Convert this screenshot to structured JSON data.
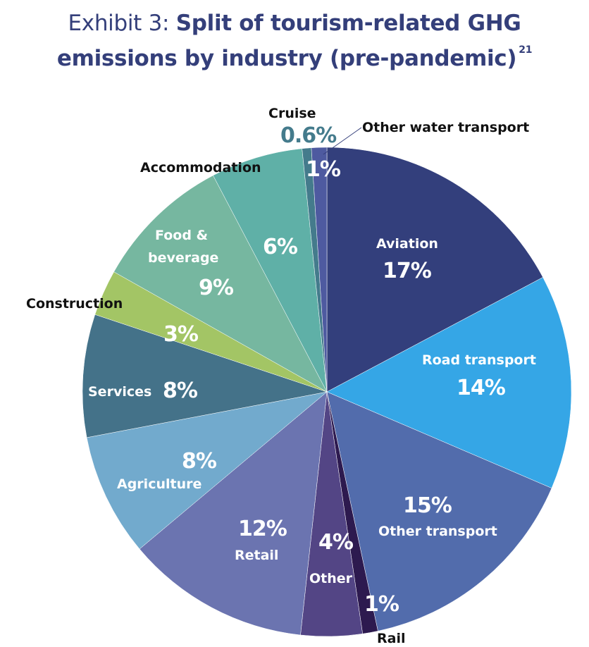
{
  "title": {
    "prefix": "Exhibit 3: ",
    "line1": "Split of tourism-related GHG",
    "line2": "emissions by industry (pre-pandemic)",
    "footnote": "21"
  },
  "chart_data": {
    "type": "pie",
    "title": "Exhibit 3: Split of tourism-related GHG emissions by industry (pre-pandemic)",
    "start_angle": "12 o'clock, clockwise",
    "categories": [
      "Aviation",
      "Road transport",
      "Other transport",
      "Rail",
      "Other",
      "Retail",
      "Agriculture",
      "Services",
      "Construction",
      "Food & beverage",
      "Accommodation",
      "Cruise",
      "Other water transport"
    ],
    "values": [
      17,
      14,
      15,
      1,
      4,
      12,
      8,
      8,
      3,
      9,
      6,
      0.6,
      1
    ],
    "unit": "%",
    "colors": [
      "#333f7c",
      "#35a6e6",
      "#526cac",
      "#2d1a4f",
      "#534585",
      "#6b74b0",
      "#72aacd",
      "#447289",
      "#a3c565",
      "#76b7a0",
      "#5fb0a7",
      "#447b8c",
      "#4e5aa0"
    ],
    "labels": [
      {
        "name": "Aviation",
        "pct": "17%"
      },
      {
        "name": "Road transport",
        "pct": "14%"
      },
      {
        "name": "Other transport",
        "pct": "15%"
      },
      {
        "name": "Rail",
        "pct": "1%"
      },
      {
        "name": "Other",
        "pct": "4%"
      },
      {
        "name": "Retail",
        "pct": "12%"
      },
      {
        "name": "Agriculture",
        "pct": "8%"
      },
      {
        "name": "Services",
        "pct": "8%"
      },
      {
        "name": "Construction",
        "pct": "3%"
      },
      {
        "name": "Food &",
        "name2": "beverage",
        "pct": "9%"
      },
      {
        "name": "Accommodation",
        "pct": "6%"
      },
      {
        "name": "Cruise",
        "pct": "0.6%"
      },
      {
        "name": "Other water transport",
        "pct": "1%"
      }
    ],
    "legend": "none (direct labels)"
  }
}
